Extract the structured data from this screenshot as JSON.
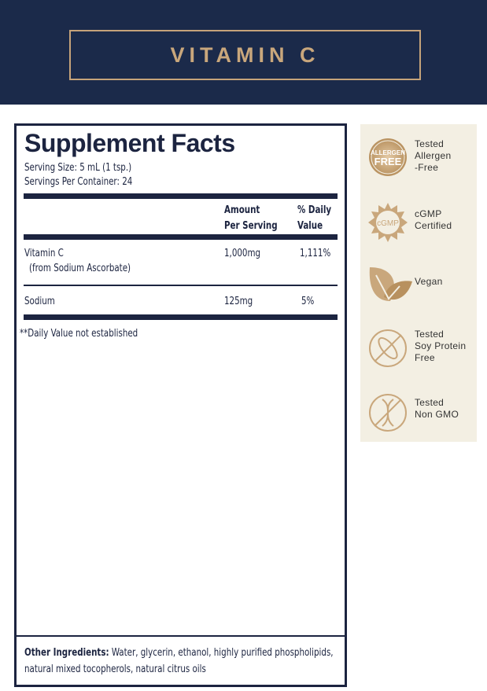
{
  "header": {
    "title": "VITAMIN C"
  },
  "facts": {
    "title": "Supplement Facts",
    "serving_size": "Serving Size: 5 mL (1 tsp.)",
    "servings_per_container": "Servings Per Container: 24",
    "col_amount": [
      "Amount",
      "Per Serving"
    ],
    "col_dv": [
      "% Daily",
      "Value"
    ],
    "rows": [
      {
        "name": "Vitamin C",
        "sub": "(from Sodium Ascorbate)",
        "amount": "1,000mg",
        "dv": "1,111%"
      },
      {
        "name": "Sodium",
        "amount": "125mg",
        "dv": "5%"
      }
    ],
    "footnote": "**Daily Value not established",
    "other_label": "Other Ingredients:",
    "other_text": " Water, glycerin, ethanol, highly purified phospholipids, natural mixed tocopherols, natural citrus oils"
  },
  "badges": [
    {
      "icon": "allergen-free-icon",
      "icon_text": [
        "ALLERGEN",
        "FREE"
      ],
      "lines": [
        "Tested",
        "Allergen",
        "-Free"
      ]
    },
    {
      "icon": "cgmp-seal-icon",
      "icon_text": [
        "cGMP"
      ],
      "lines": [
        "cGMP",
        "Certified"
      ]
    },
    {
      "icon": "leaf-icon",
      "lines": [
        "Vegan"
      ]
    },
    {
      "icon": "no-soy-icon",
      "lines": [
        "Tested",
        "Soy Protein",
        "Free"
      ]
    },
    {
      "icon": "no-gmo-dna-icon",
      "lines": [
        "Tested",
        "Non GMO"
      ]
    }
  ],
  "colors": {
    "navy": "#1b2a4a",
    "gold": "#c9a77c",
    "panel": "#f3efe3"
  }
}
